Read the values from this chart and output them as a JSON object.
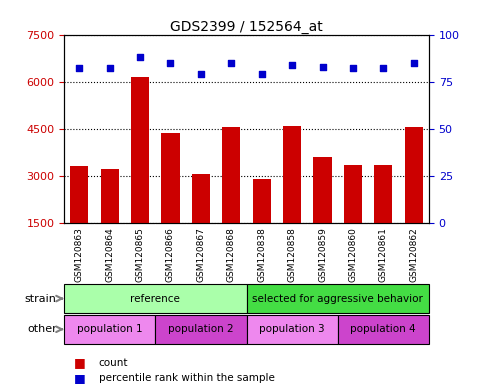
{
  "title": "GDS2399 / 152564_at",
  "samples": [
    "GSM120863",
    "GSM120864",
    "GSM120865",
    "GSM120866",
    "GSM120867",
    "GSM120868",
    "GSM120838",
    "GSM120858",
    "GSM120859",
    "GSM120860",
    "GSM120861",
    "GSM120862"
  ],
  "bar_values": [
    3300,
    3200,
    6150,
    4350,
    3050,
    4550,
    2900,
    4600,
    3600,
    3350,
    3350,
    4550
  ],
  "dot_values": [
    82,
    82,
    88,
    85,
    79,
    85,
    79,
    84,
    83,
    82,
    82,
    85
  ],
  "bar_color": "#cc0000",
  "dot_color": "#0000cc",
  "ylim_left": [
    1500,
    7500
  ],
  "ylim_right": [
    0,
    100
  ],
  "yticks_left": [
    1500,
    3000,
    4500,
    6000,
    7500
  ],
  "yticks_right": [
    0,
    25,
    50,
    75,
    100
  ],
  "strain_groups": [
    {
      "label": "reference",
      "start": 0,
      "end": 6,
      "color": "#aaffaa"
    },
    {
      "label": "selected for aggressive behavior",
      "start": 6,
      "end": 12,
      "color": "#44dd44"
    }
  ],
  "other_groups": [
    {
      "label": "population 1",
      "start": 0,
      "end": 3,
      "color": "#ee88ee"
    },
    {
      "label": "population 2",
      "start": 3,
      "end": 6,
      "color": "#cc44cc"
    },
    {
      "label": "population 3",
      "start": 6,
      "end": 9,
      "color": "#ee88ee"
    },
    {
      "label": "population 4",
      "start": 9,
      "end": 12,
      "color": "#cc44cc"
    }
  ],
  "legend_items": [
    {
      "label": "count",
      "color": "#cc0000"
    },
    {
      "label": "percentile rank within the sample",
      "color": "#0000cc"
    }
  ],
  "tick_label_color_left": "#cc0000",
  "tick_label_color_right": "#0000cc",
  "strain_label": "strain",
  "other_label": "other",
  "xticklabel_bg": "#cccccc"
}
